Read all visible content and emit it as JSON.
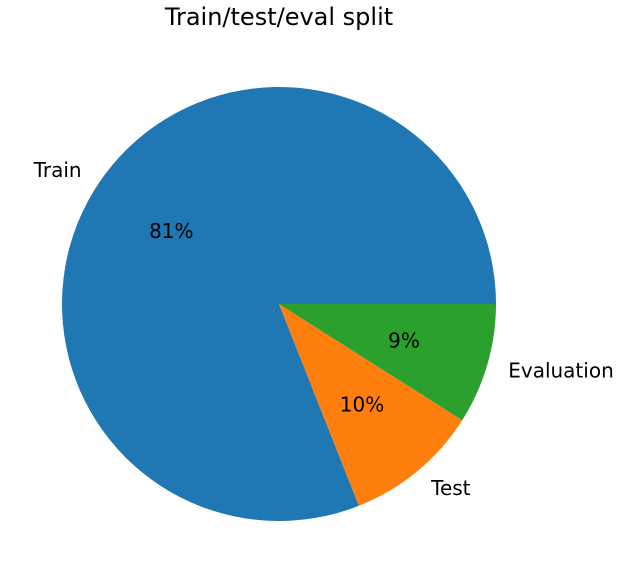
{
  "chart_data": {
    "type": "pie",
    "title": "Train/test/eval split",
    "categories": [
      "Train",
      "Test",
      "Evaluation"
    ],
    "values": [
      81,
      10,
      9
    ],
    "percent_labels": [
      "81%",
      "10%",
      "9%"
    ],
    "colors": [
      "#1f77b4",
      "#ff7f0e",
      "#2ca02c"
    ],
    "start_angle_deg": 0,
    "direction": "counterclockwise",
    "legend": "none"
  }
}
